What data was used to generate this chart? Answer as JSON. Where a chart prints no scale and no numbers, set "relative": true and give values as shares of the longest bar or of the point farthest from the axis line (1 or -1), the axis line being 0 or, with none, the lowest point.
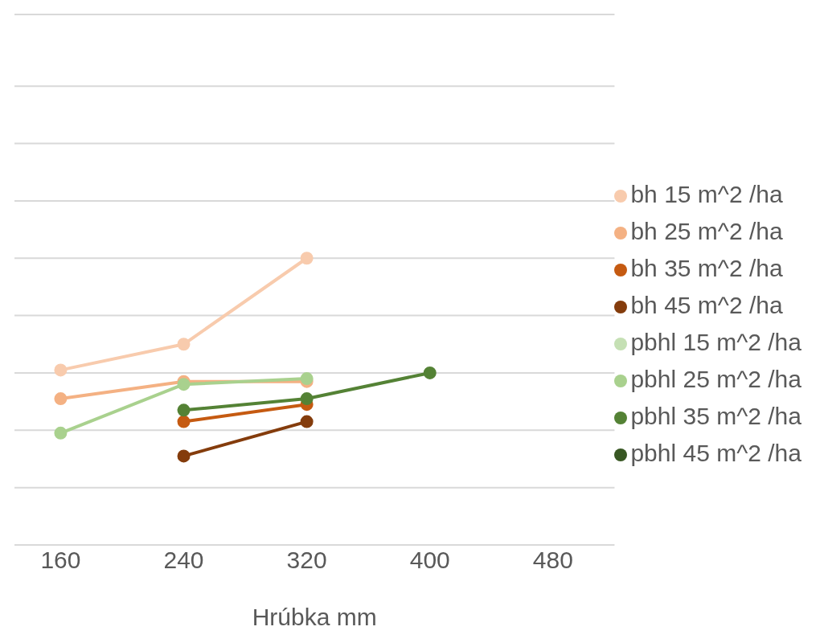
{
  "chart_data": {
    "type": "line",
    "xlabel": "Hrúbka mm",
    "x": [
      160,
      240,
      320,
      400
    ],
    "xlim": [
      130,
      520
    ],
    "xticks": [
      160,
      240,
      320,
      400,
      480
    ],
    "relative": true,
    "grid": "y",
    "legend": "right",
    "marker": "circle",
    "line_style": "solid",
    "series": [
      {
        "name": "bh 15 m^2 /ha",
        "color": "#f8cbad",
        "values": [
          0.61,
          0.7,
          1,
          null
        ]
      },
      {
        "name": "bh 25 m^2 /ha",
        "color": "#f4b183",
        "values": [
          0.51,
          0.57,
          0.57,
          null
        ]
      },
      {
        "name": "bh 35 m^2 /ha",
        "color": "#c55a11",
        "values": [
          null,
          0.43,
          0.49,
          null
        ]
      },
      {
        "name": "bh 45 m^2 /ha",
        "color": "#843c0c",
        "values": [
          null,
          0.31,
          0.43,
          null
        ]
      },
      {
        "name": "pbhl 15 m^2 /ha",
        "color": "#c5e0b4",
        "values": [
          null,
          null,
          null,
          null
        ]
      },
      {
        "name": "pbhl 25 m^2 /ha",
        "color": "#a9d18e",
        "values": [
          0.39,
          0.56,
          0.58,
          null
        ]
      },
      {
        "name": "pbhl 35 m^2 /ha",
        "color": "#548235",
        "values": [
          null,
          0.47,
          0.51,
          0.6
        ]
      },
      {
        "name": "pbhl 45 m^2 /ha",
        "color": "#385723",
        "values": [
          null,
          null,
          null,
          null
        ]
      }
    ]
  }
}
